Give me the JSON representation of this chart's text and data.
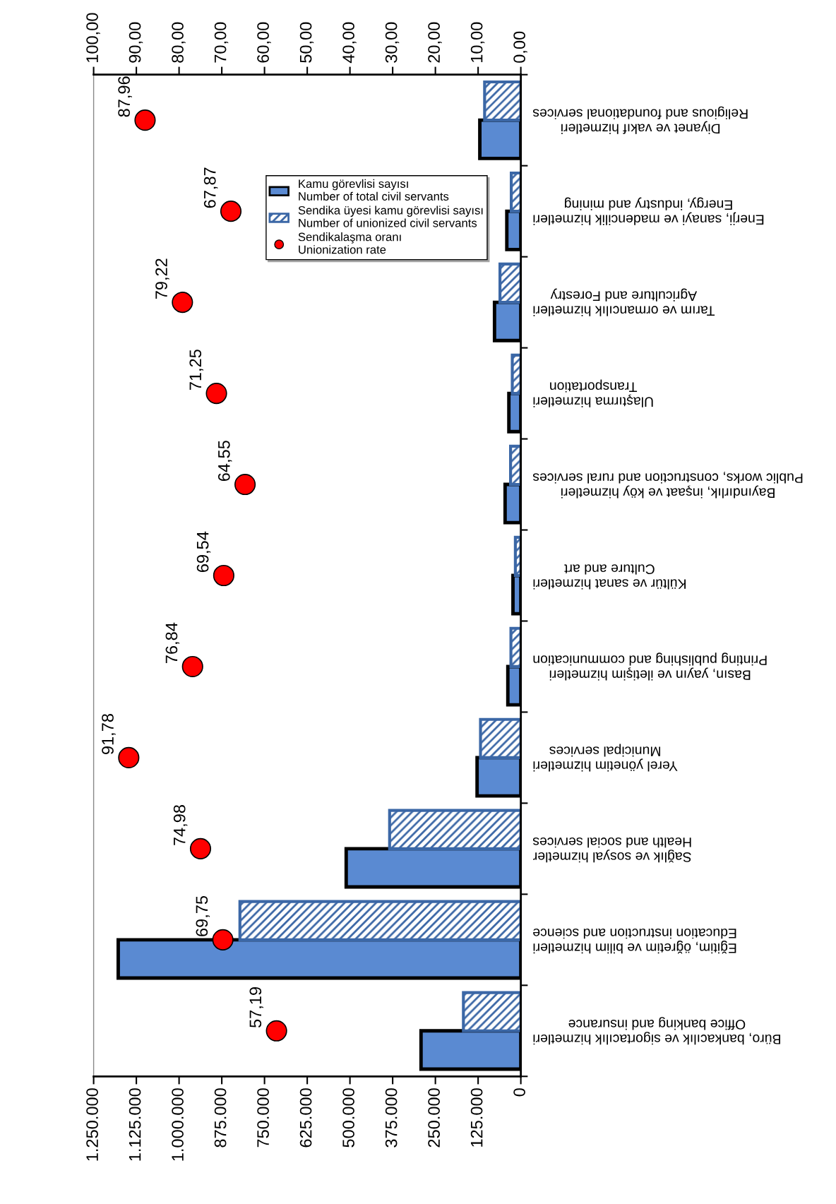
{
  "chart_data": {
    "type": "bar",
    "orientation": "horizontal",
    "categories": [
      "Diyanet ve vakıf hizmetleri\nReligious and foundational services",
      "Enerji, sanayi ve madencilik hizmetleri\nEnergy, industry and mining",
      "Tarım ve ormancılık hizmetleri\nAgriculture and Forestry",
      "Ulaştırma hizmetleri\nTransportation",
      "Bayındırlık, inşaat ve köy hizmetleri\nPublic works, construction and rural services",
      "Kültür ve sanat hizmetleri\nCulture and art",
      "Basın, yayın ve iletişim hizmetleri\nPrinting publishing and communication",
      "Yerel yönetim hizmetleri\nMunicipal services",
      "Sağlık ve sosyal hizmetler\nHealth and social services",
      "Eğitim, öğretim ve bilim hizmetleri\nEducation instruction and science",
      "Büro, bankacılık ve sigortacılık hizmetleri\nOffice banking and insurance"
    ],
    "series": [
      {
        "name": "Kamu görevlisi sayısı\nNumber of total civil servants",
        "type": "bar",
        "color": "#5a8ad2",
        "values": [
          120000,
          41000,
          77000,
          35000,
          46000,
          23000,
          38000,
          128000,
          511000,
          1178000,
          292000
        ]
      },
      {
        "name": "Sendika üyesi kamu görevlisi sayısı\nNumber of unionized civil servants",
        "type": "bar",
        "color": "#3b67a6",
        "values": [
          106000,
          28000,
          61000,
          25000,
          30000,
          16000,
          29000,
          118000,
          384000,
          822000,
          168000
        ]
      },
      {
        "name": "Sendikalaşma oranı\nUnionization rate",
        "type": "scatter",
        "axis": "x2",
        "color": "#ff0000",
        "marker": "circle",
        "values": [
          87.96,
          67.87,
          79.22,
          71.25,
          64.55,
          69.54,
          76.84,
          91.78,
          74.98,
          69.75,
          57.19
        ],
        "value_labels": [
          "87,96",
          "67,87",
          "79,22",
          "71,25",
          "64,55",
          "69,54",
          "76,84",
          "91,78",
          "74,98",
          "69,75",
          "57,19"
        ]
      }
    ],
    "xlim": [
      1250000,
      0
    ],
    "xticks": [
      {
        "value": 1250000,
        "label": "1.250.000"
      },
      {
        "value": 1125000,
        "label": "1.125.000"
      },
      {
        "value": 1000000,
        "label": "1.000.000"
      },
      {
        "value": 875000,
        "label": "875.000"
      },
      {
        "value": 750000,
        "label": "750.000"
      },
      {
        "value": 625000,
        "label": "625.000"
      },
      {
        "value": 500000,
        "label": "500.000"
      },
      {
        "value": 375000,
        "label": "375.000"
      },
      {
        "value": 250000,
        "label": "250.000"
      },
      {
        "value": 125000,
        "label": "125.000"
      },
      0
    ],
    "x2lim": [
      100,
      0
    ],
    "x2ticks": [
      {
        "value": 100,
        "label": "100,00"
      },
      {
        "value": 90,
        "label": "90,00"
      },
      {
        "value": 80,
        "label": "80,00"
      },
      {
        "value": 70,
        "label": "70,00"
      },
      {
        "value": 60,
        "label": "60,00"
      },
      {
        "value": 50,
        "label": "50,00"
      },
      {
        "value": 40,
        "label": "40,00"
      },
      {
        "value": 30,
        "label": "30,00"
      },
      {
        "value": 20,
        "label": "20,00"
      },
      {
        "value": 10,
        "label": "10,00"
      },
      {
        "value": 0,
        "label": "0,00"
      }
    ],
    "grid": false,
    "legend": "top right"
  }
}
